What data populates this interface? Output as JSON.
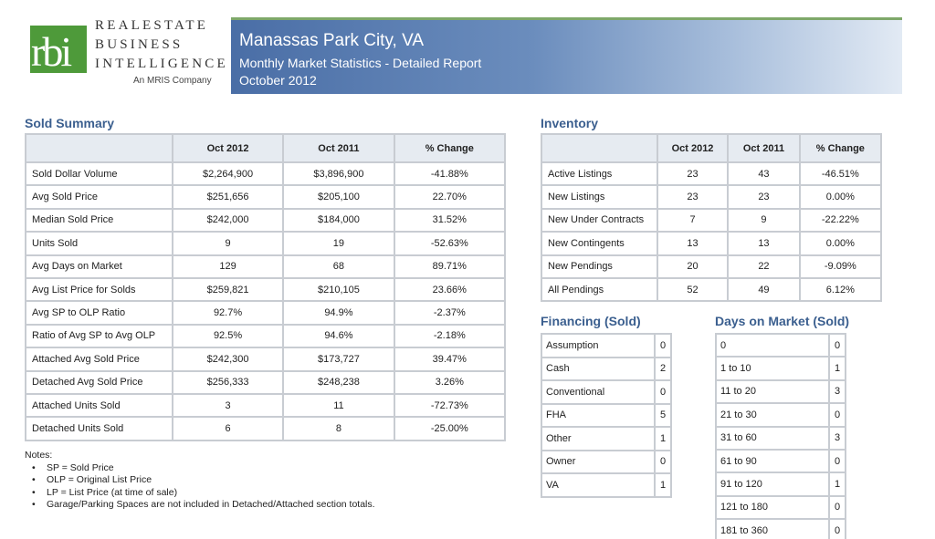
{
  "brand": {
    "logo_letters": "rbi",
    "line1": "REALESTATE",
    "line2": "BUSINESS",
    "line3": "INTELLIGENCE",
    "tagline": "An MRIS Company",
    "green": "#4e9a3a"
  },
  "header": {
    "city": "Manassas Park City, VA",
    "report": "Monthly Market Statistics - Detailed Report",
    "period": "October 2012"
  },
  "sold_summary": {
    "title": "Sold Summary",
    "columns": [
      "",
      "Oct 2012",
      "Oct 2011",
      "% Change"
    ],
    "rows": [
      [
        "Sold Dollar Volume",
        "$2,264,900",
        "$3,896,900",
        "-41.88%"
      ],
      [
        "Avg Sold Price",
        "$251,656",
        "$205,100",
        "22.70%"
      ],
      [
        "Median Sold Price",
        "$242,000",
        "$184,000",
        "31.52%"
      ],
      [
        "Units Sold",
        "9",
        "19",
        "-52.63%"
      ],
      [
        "Avg Days on Market",
        "129",
        "68",
        "89.71%"
      ],
      [
        "Avg List Price for Solds",
        "$259,821",
        "$210,105",
        "23.66%"
      ],
      [
        "Avg SP to OLP Ratio",
        "92.7%",
        "94.9%",
        "-2.37%"
      ],
      [
        "Ratio of Avg SP to Avg OLP",
        "92.5%",
        "94.6%",
        "-2.18%"
      ],
      [
        "Attached Avg Sold Price",
        "$242,300",
        "$173,727",
        "39.47%"
      ],
      [
        "Detached Avg Sold Price",
        "$256,333",
        "$248,238",
        "3.26%"
      ],
      [
        "Attached Units Sold",
        "3",
        "11",
        "-72.73%"
      ],
      [
        "Detached Units Sold",
        "6",
        "8",
        "-25.00%"
      ]
    ]
  },
  "inventory": {
    "title": "Inventory",
    "columns": [
      "",
      "Oct 2012",
      "Oct 2011",
      "% Change"
    ],
    "rows": [
      [
        "Active Listings",
        "23",
        "43",
        "-46.51%"
      ],
      [
        "New Listings",
        "23",
        "23",
        "0.00%"
      ],
      [
        "New Under Contracts",
        "7",
        "9",
        "-22.22%"
      ],
      [
        "New Contingents",
        "13",
        "13",
        "0.00%"
      ],
      [
        "New Pendings",
        "20",
        "22",
        "-9.09%"
      ],
      [
        "All Pendings",
        "52",
        "49",
        "6.12%"
      ]
    ]
  },
  "financing": {
    "title": "Financing (Sold)",
    "rows": [
      [
        "Assumption",
        "0"
      ],
      [
        "Cash",
        "2"
      ],
      [
        "Conventional",
        "0"
      ],
      [
        "FHA",
        "5"
      ],
      [
        "Other",
        "1"
      ],
      [
        "Owner",
        "0"
      ],
      [
        "VA",
        "1"
      ]
    ]
  },
  "days_on_market": {
    "title": "Days on Market (Sold)",
    "rows": [
      [
        "0",
        "0"
      ],
      [
        "1 to 10",
        "1"
      ],
      [
        "11 to 20",
        "3"
      ],
      [
        "21 to 30",
        "0"
      ],
      [
        "31 to 60",
        "3"
      ],
      [
        "61 to 90",
        "0"
      ],
      [
        "91 to 120",
        "1"
      ],
      [
        "121 to 180",
        "0"
      ],
      [
        "181 to 360",
        "0"
      ]
    ]
  },
  "notes": {
    "heading": "Notes:",
    "items": [
      "SP = Sold Price",
      "OLP = Original List Price",
      "LP = List Price (at time of sale)",
      "Garage/Parking Spaces are not included in Detached/Attached section totals."
    ]
  }
}
